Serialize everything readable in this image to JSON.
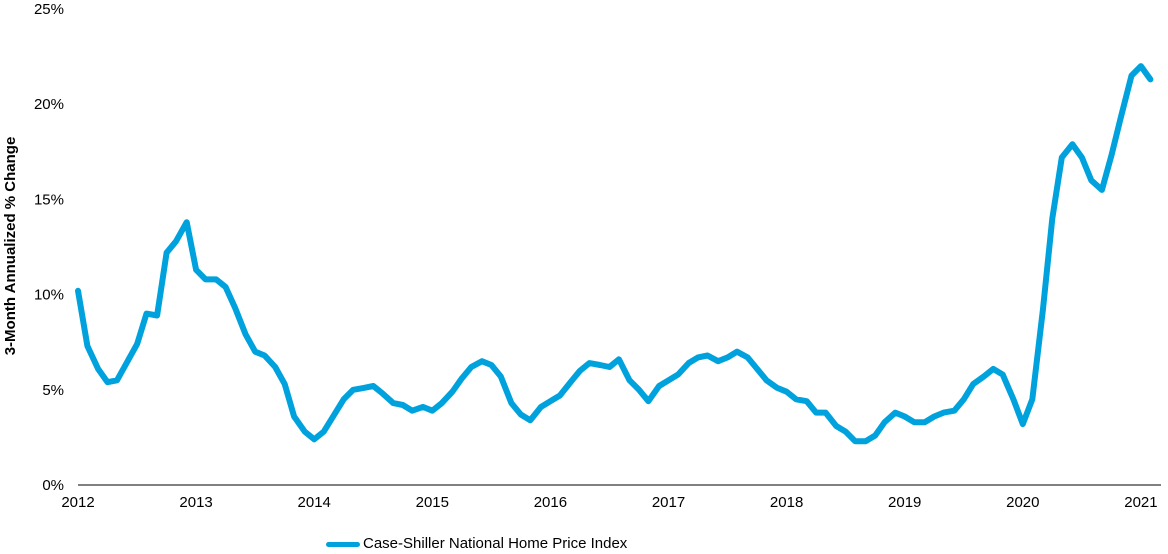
{
  "chart_data": {
    "type": "line",
    "title": "",
    "xlabel": "",
    "ylabel": "3-Month Annualized % Change",
    "ylim": [
      0,
      25
    ],
    "xlim": [
      2012,
      2021.17
    ],
    "yticks": [
      0,
      5,
      10,
      15,
      20,
      25
    ],
    "ytick_labels": [
      "0%",
      "5%",
      "10%",
      "15%",
      "20%",
      "25%"
    ],
    "xticks": [
      2012,
      2013,
      2014,
      2015,
      2016,
      2017,
      2018,
      2019,
      2020,
      2021
    ],
    "xtick_labels": [
      "2012",
      "2013",
      "2014",
      "2015",
      "2016",
      "2017",
      "2018",
      "2019",
      "2020",
      "2021"
    ],
    "grid": false,
    "legend_position": "bottom-center",
    "series": [
      {
        "name": "Case-Shiller National Home Price Index",
        "color": "#00A2DD",
        "x": [
          2012.0,
          2012.08,
          2012.17,
          2012.25,
          2012.33,
          2012.42,
          2012.5,
          2012.58,
          2012.67,
          2012.75,
          2012.83,
          2012.92,
          2013.0,
          2013.08,
          2013.17,
          2013.25,
          2013.33,
          2013.42,
          2013.5,
          2013.58,
          2013.67,
          2013.75,
          2013.83,
          2013.92,
          2014.0,
          2014.08,
          2014.17,
          2014.25,
          2014.33,
          2014.42,
          2014.5,
          2014.58,
          2014.67,
          2014.75,
          2014.83,
          2014.92,
          2015.0,
          2015.08,
          2015.17,
          2015.25,
          2015.33,
          2015.42,
          2015.5,
          2015.58,
          2015.67,
          2015.75,
          2015.83,
          2015.92,
          2016.0,
          2016.08,
          2016.17,
          2016.25,
          2016.33,
          2016.42,
          2016.5,
          2016.58,
          2016.67,
          2016.75,
          2016.83,
          2016.92,
          2017.0,
          2017.08,
          2017.17,
          2017.25,
          2017.33,
          2017.42,
          2017.5,
          2017.58,
          2017.67,
          2017.75,
          2017.83,
          2017.92,
          2018.0,
          2018.08,
          2018.17,
          2018.25,
          2018.33,
          2018.42,
          2018.5,
          2018.58,
          2018.67,
          2018.75,
          2018.83,
          2018.92,
          2019.0,
          2019.08,
          2019.17,
          2019.25,
          2019.33,
          2019.42,
          2019.5,
          2019.58,
          2019.67,
          2019.75,
          2019.83,
          2019.92,
          2020.0,
          2020.08,
          2020.17,
          2020.25,
          2020.33,
          2020.42,
          2020.5,
          2020.58,
          2020.67,
          2020.75,
          2020.83,
          2020.92,
          2021.0,
          2021.08
        ],
        "values": [
          10.2,
          7.3,
          6.1,
          5.4,
          5.5,
          6.5,
          7.4,
          9.0,
          8.9,
          12.2,
          12.8,
          13.8,
          11.3,
          10.8,
          10.8,
          10.4,
          9.3,
          7.9,
          7.0,
          6.8,
          6.2,
          5.3,
          3.6,
          2.8,
          2.4,
          2.8,
          3.7,
          4.5,
          5.0,
          5.1,
          5.2,
          4.8,
          4.3,
          4.2,
          3.9,
          4.1,
          3.9,
          4.3,
          4.9,
          5.6,
          6.2,
          6.5,
          6.3,
          5.7,
          4.3,
          3.7,
          3.4,
          4.1,
          4.4,
          4.7,
          5.4,
          6.0,
          6.4,
          6.3,
          6.2,
          6.6,
          5.5,
          5.0,
          4.4,
          5.2,
          5.5,
          5.8,
          6.4,
          6.7,
          6.8,
          6.5,
          6.7,
          7.0,
          6.7,
          6.1,
          5.5,
          5.1,
          4.9,
          4.5,
          4.4,
          3.8,
          3.8,
          3.1,
          2.8,
          2.3,
          2.3,
          2.6,
          3.3,
          3.8,
          3.6,
          3.3,
          3.3,
          3.6,
          3.8,
          3.9,
          4.5,
          5.3,
          5.7,
          6.1,
          5.8,
          4.5,
          3.2,
          4.5,
          9.2,
          14.0,
          17.2,
          17.9,
          17.2,
          16.0,
          15.5,
          17.3,
          19.3,
          21.5,
          22.0,
          21.3
        ]
      }
    ]
  }
}
